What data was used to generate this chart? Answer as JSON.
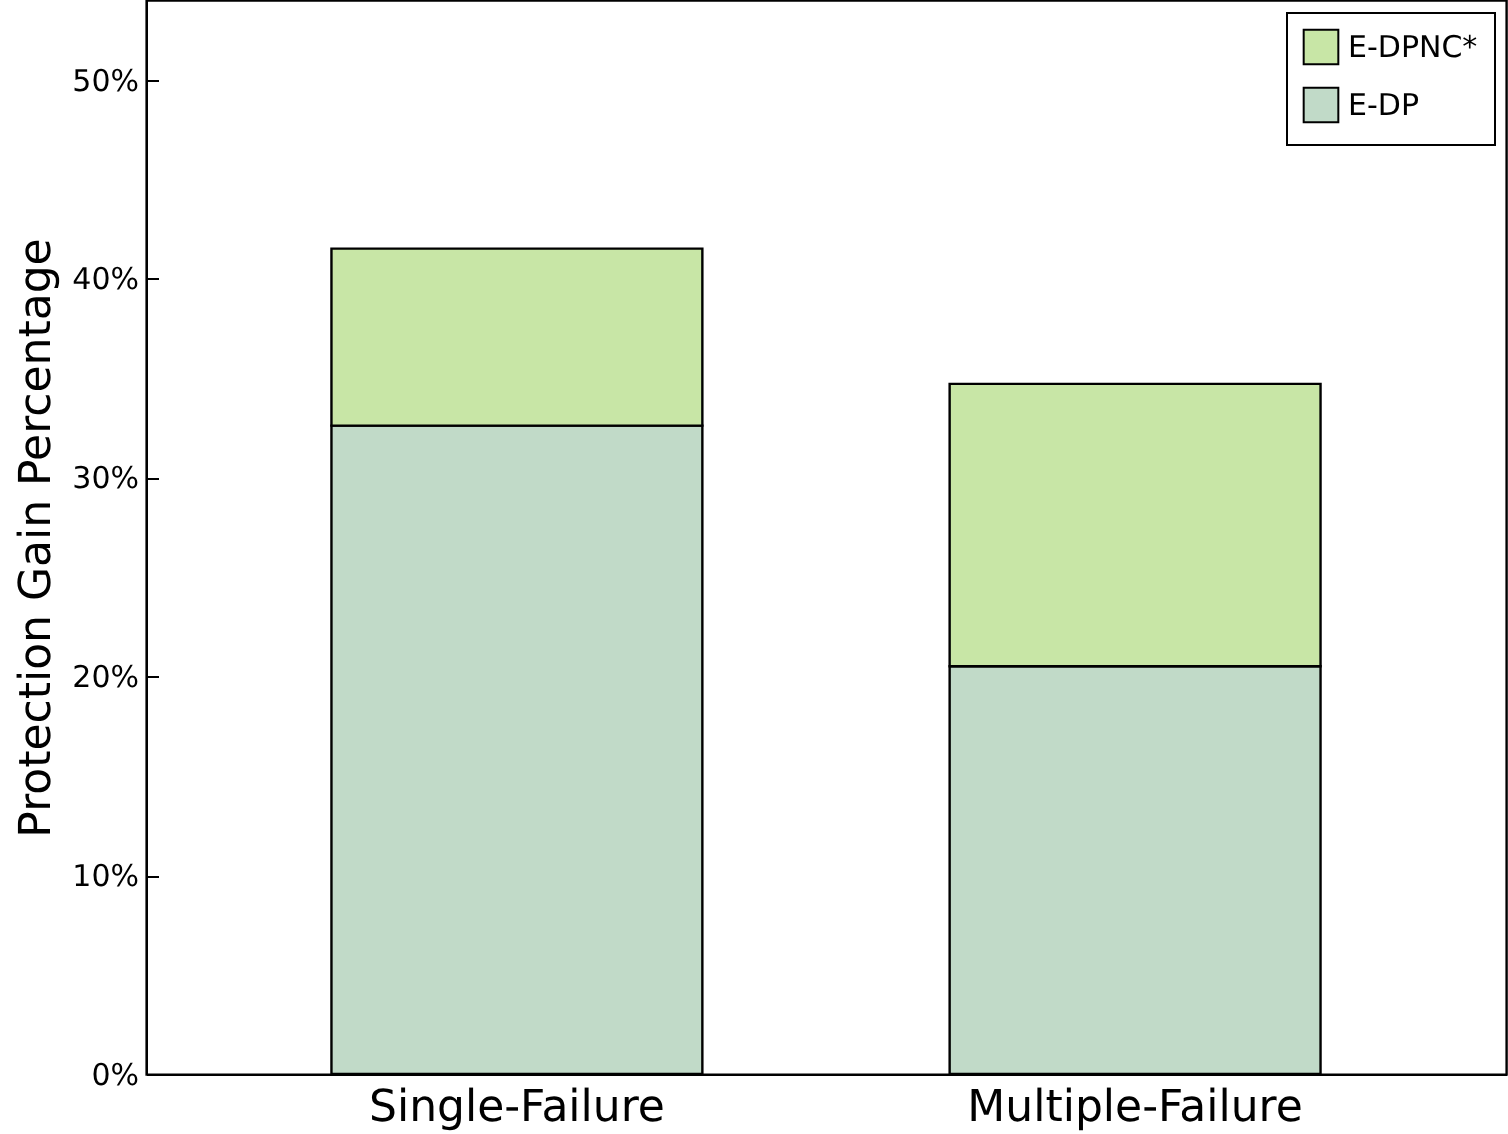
{
  "chart_data": {
    "type": "bar",
    "ylabel": "Protection Gain Percentage",
    "categories": [
      "Single-Failure",
      "Multiple-Failure"
    ],
    "stacked": true,
    "series": [
      {
        "name": "E-DP",
        "color": "#c1dac8",
        "values": [
          32.6,
          20.5
        ]
      },
      {
        "name": "E-DPNC*",
        "color": "#c8e6a6",
        "values": [
          8.9,
          14.2
        ]
      }
    ],
    "ylim": [
      0,
      54
    ],
    "yticks": [
      {
        "value": 0,
        "label": "0%"
      },
      {
        "value": 10,
        "label": "10%"
      },
      {
        "value": 20,
        "label": "20%"
      },
      {
        "value": 30,
        "label": "30%"
      },
      {
        "value": 40,
        "label": "40%"
      },
      {
        "value": 50,
        "label": "50%"
      }
    ],
    "grid": false,
    "legend": "top right"
  }
}
